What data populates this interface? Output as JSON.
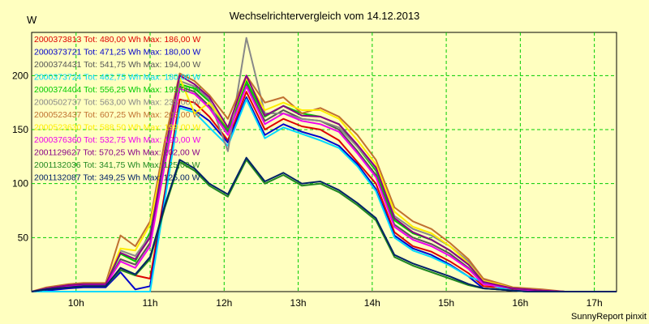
{
  "chart_data": {
    "type": "line",
    "title": "Wechselrichtervergleich vom 14.12.2013",
    "ylabel": "W",
    "xlabel": "",
    "xlim": [
      9.4,
      17.3
    ],
    "ylim": [
      0,
      240
    ],
    "x_ticks": [
      10,
      11,
      12,
      13,
      14,
      15,
      16,
      17
    ],
    "x_tick_labels": [
      "10h",
      "11h",
      "12h",
      "13h",
      "14h",
      "15h",
      "16h",
      "17h"
    ],
    "y_ticks": [
      50,
      100,
      150,
      200
    ],
    "y_tick_labels": [
      "50",
      "100",
      "150",
      "200"
    ],
    "grid": true,
    "legend_position": "top-left",
    "x": [
      9.4,
      9.6,
      9.9,
      10.1,
      10.3,
      10.4,
      10.6,
      10.8,
      11.0,
      11.2,
      11.4,
      11.6,
      11.8,
      12.05,
      12.3,
      12.55,
      12.8,
      13.05,
      13.3,
      13.55,
      13.8,
      14.05,
      14.3,
      14.55,
      14.8,
      15.05,
      15.3,
      15.5,
      15.7,
      15.9,
      16.1,
      16.3,
      16.6,
      17.0,
      17.3
    ],
    "series": [
      {
        "name": "2000373813 Tot: 480,00 Wh Max: 186,00 W",
        "color": "#dd0000",
        "values": [
          0,
          2,
          4,
          5,
          5,
          5,
          22,
          15,
          12,
          92,
          178,
          175,
          162,
          140,
          185,
          150,
          160,
          153,
          150,
          140,
          120,
          100,
          55,
          42,
          37,
          28,
          17,
          5,
          4,
          2,
          0,
          1,
          0,
          0,
          0
        ]
      },
      {
        "name": "2000373721 Tot: 471,25 Wh Max: 180,00 W",
        "color": "#0000cc",
        "values": [
          0,
          1,
          3,
          4,
          4,
          4,
          18,
          2,
          5,
          88,
          172,
          168,
          158,
          138,
          180,
          145,
          155,
          148,
          143,
          135,
          118,
          95,
          52,
          40,
          34,
          25,
          14,
          3,
          2,
          1,
          0,
          0,
          0,
          0,
          0
        ]
      },
      {
        "name": "2000374431 Tot: 541,75 Wh Max: 194,00 W",
        "color": "#555555",
        "values": [
          0,
          3,
          5,
          6,
          6,
          6,
          30,
          25,
          45,
          120,
          190,
          185,
          172,
          148,
          192,
          158,
          168,
          160,
          158,
          150,
          130,
          108,
          62,
          50,
          44,
          35,
          22,
          8,
          6,
          3,
          1,
          1,
          0,
          0,
          0
        ]
      },
      {
        "name": "2000373724 Tot: 462,75 Wh Max: 180,00 W",
        "color": "#00d8ff",
        "values": [
          0,
          0,
          0,
          0,
          0,
          0,
          0,
          0,
          0,
          85,
          170,
          166,
          152,
          135,
          178,
          142,
          152,
          146,
          140,
          133,
          116,
          93,
          50,
          38,
          32,
          24,
          14,
          9,
          4,
          1,
          0,
          0,
          0,
          0,
          0
        ]
      },
      {
        "name": "2000374404 Tot: 556,25 Wh Max: 195,00 W",
        "color": "#00cc00",
        "values": [
          0,
          3,
          6,
          7,
          7,
          7,
          35,
          28,
          55,
          125,
          192,
          188,
          176,
          150,
          195,
          162,
          172,
          165,
          162,
          155,
          134,
          112,
          66,
          54,
          48,
          38,
          25,
          10,
          6,
          3,
          2,
          1,
          0,
          0,
          0
        ]
      },
      {
        "name": "2000502737 Tot: 563,00 Wh Max: 235,00 W",
        "color": "#888888",
        "values": [
          0,
          2,
          5,
          6,
          6,
          6,
          38,
          33,
          52,
          128,
          195,
          190,
          178,
          130,
          235,
          165,
          165,
          160,
          158,
          152,
          134,
          114,
          70,
          58,
          52,
          42,
          28,
          11,
          7,
          3,
          2,
          1,
          0,
          0,
          0
        ]
      },
      {
        "name": "2000523437 Tot: 607,25 Wh Max: 203,00 W",
        "color": "#c07030",
        "values": [
          0,
          4,
          7,
          8,
          8,
          8,
          52,
          42,
          65,
          140,
          202,
          195,
          182,
          160,
          200,
          175,
          180,
          165,
          170,
          162,
          145,
          122,
          78,
          65,
          58,
          45,
          30,
          12,
          8,
          4,
          3,
          2,
          0,
          0,
          0
        ]
      },
      {
        "name": "2000523630 Tot: 588,50 Wh Max: 199,00 W",
        "color": "#ffee00",
        "values": [
          0,
          3,
          6,
          7,
          7,
          7,
          40,
          38,
          62,
          132,
          198,
          165,
          175,
          152,
          198,
          168,
          175,
          168,
          168,
          160,
          140,
          118,
          74,
          60,
          54,
          42,
          26,
          10,
          7,
          3,
          2,
          1,
          0,
          0,
          0
        ]
      },
      {
        "name": "2000376360 Tot: 532,75 Wh Max: 190,00 W",
        "color": "#ee00ee",
        "values": [
          0,
          2,
          5,
          6,
          6,
          6,
          28,
          22,
          42,
          118,
          188,
          183,
          170,
          145,
          190,
          155,
          165,
          158,
          155,
          148,
          128,
          106,
          60,
          48,
          42,
          33,
          21,
          7,
          5,
          3,
          1,
          1,
          0,
          0,
          0
        ]
      },
      {
        "name": "2001129627 Tot: 570,25 Wh Max: 202,00 W",
        "color": "#880088",
        "values": [
          0,
          3,
          6,
          7,
          7,
          7,
          36,
          30,
          50,
          130,
          200,
          192,
          180,
          152,
          200,
          163,
          172,
          163,
          162,
          155,
          136,
          115,
          68,
          55,
          48,
          38,
          25,
          9,
          6,
          3,
          2,
          1,
          0,
          0,
          0
        ]
      },
      {
        "name": "2001132036 Tot: 341,75 Wh Max: 125,00 W",
        "color": "#228822",
        "values": [
          0,
          2,
          4,
          5,
          5,
          5,
          20,
          15,
          30,
          78,
          120,
          112,
          98,
          88,
          122,
          100,
          108,
          98,
          100,
          92,
          80,
          66,
          32,
          24,
          18,
          12,
          6,
          3,
          2,
          1,
          0,
          0,
          0,
          0,
          0
        ]
      },
      {
        "name": "2001132087 Tot: 349,25 Wh Max: 125,00 W",
        "color": "#002266",
        "values": [
          0,
          2,
          4,
          5,
          5,
          5,
          22,
          16,
          32,
          80,
          122,
          114,
          100,
          90,
          124,
          102,
          110,
          100,
          102,
          94,
          82,
          68,
          34,
          26,
          20,
          14,
          7,
          3,
          2,
          1,
          0,
          0,
          0,
          0,
          0
        ]
      }
    ]
  },
  "footer": {
    "credit": "SunnyReport pinxit"
  }
}
